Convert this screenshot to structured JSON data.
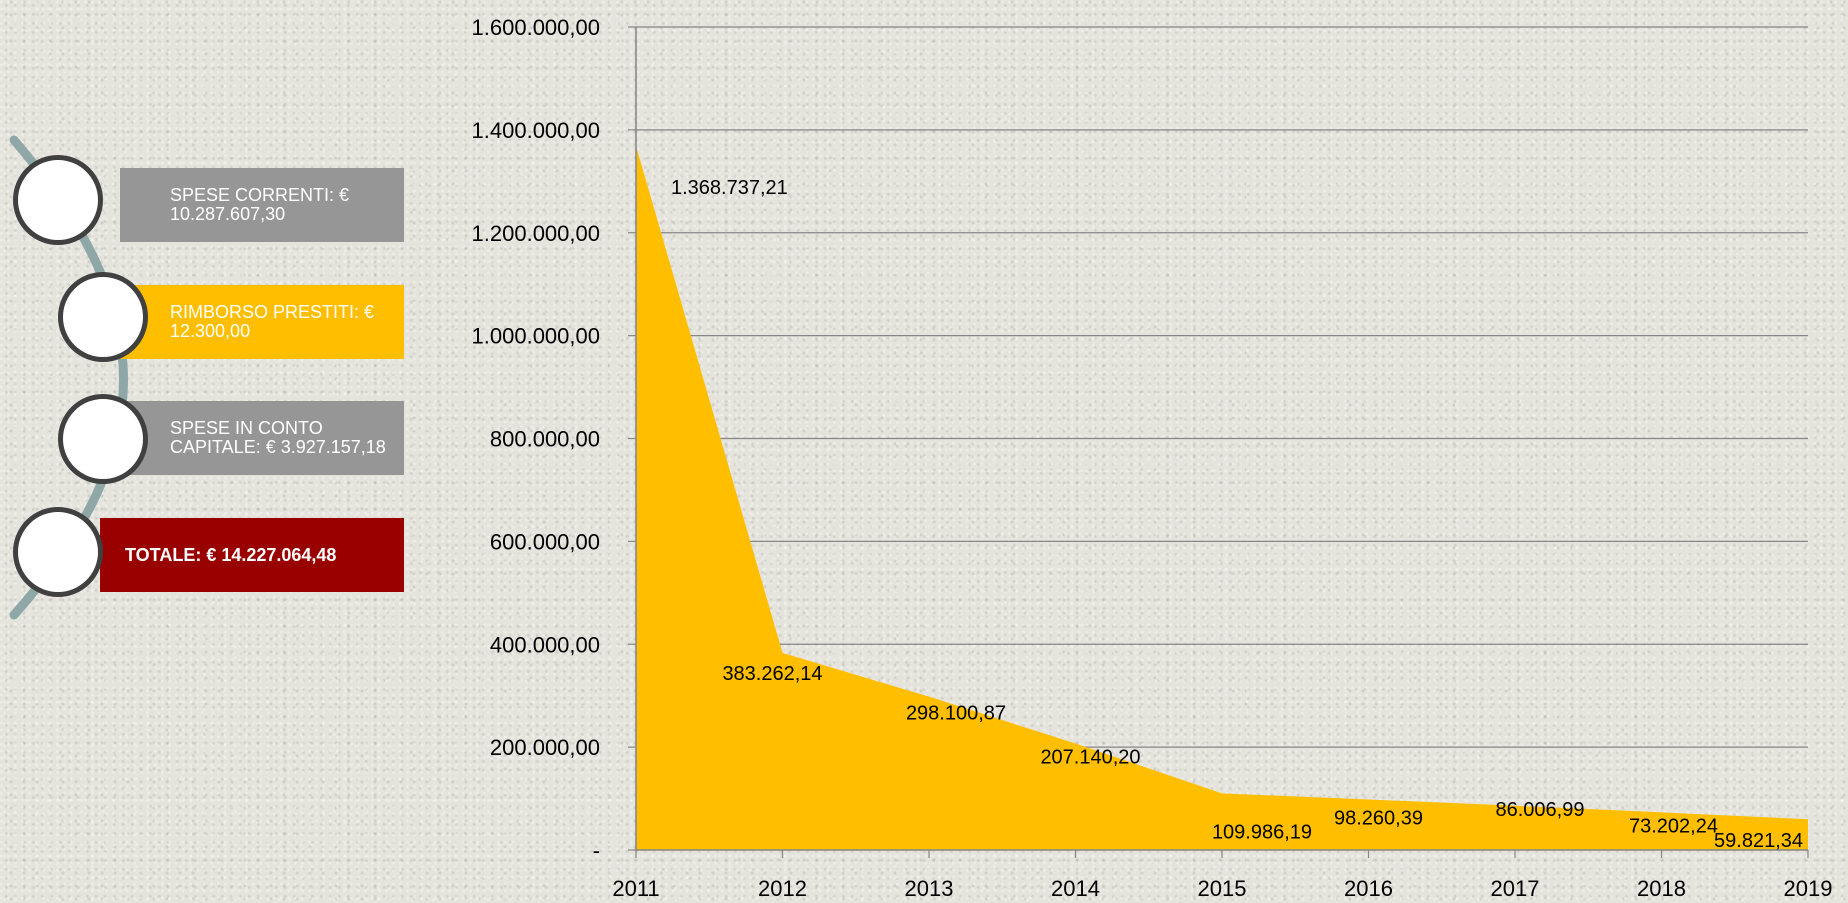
{
  "legend": {
    "items": [
      {
        "label": "SPESE CORRENTI: € 10.287.607,30",
        "style": "gray"
      },
      {
        "label": "RIMBORSO PRESTITI: € 12.300,00",
        "style": "gold"
      },
      {
        "label": "SPESE IN CONTO CAPITALE: € 3.927.157,18",
        "style": "gray"
      },
      {
        "label": "TOTALE: € 14.227.064,48",
        "style": "red"
      }
    ]
  },
  "chart_data": {
    "type": "area",
    "title": "",
    "xlabel": "",
    "ylabel": "",
    "x": [
      "2011",
      "2012",
      "2013",
      "2014",
      "2015",
      "2016",
      "2017",
      "2018",
      "2019"
    ],
    "series": [
      {
        "color": "#ffbf00",
        "values": [
          1368737.21,
          383262.14,
          298100.87,
          207140.2,
          109986.19,
          98260.39,
          86006.99,
          73202.24,
          59821.34
        ]
      }
    ],
    "data_labels": [
      "1.368.737,21",
      "383.262,14",
      "298.100,87",
      "207.140,20",
      "109.986,19",
      "98.260,39",
      "86.006,99",
      "73.202,24",
      "59.821,34"
    ],
    "ylim": [
      0,
      1600000
    ],
    "yticks": [
      0,
      200000,
      400000,
      600000,
      800000,
      1000000,
      1200000,
      1400000,
      1600000
    ],
    "ytick_labels": [
      "-",
      "200.000,00",
      "400.000,00",
      "600.000,00",
      "800.000,00",
      "1.000.000,00",
      "1.200.000,00",
      "1.400.000,00",
      "1.600.000,00"
    ],
    "grid": true,
    "colors": {
      "grid": "#868686",
      "axis": "#868686",
      "fill": "#ffbf00"
    }
  }
}
